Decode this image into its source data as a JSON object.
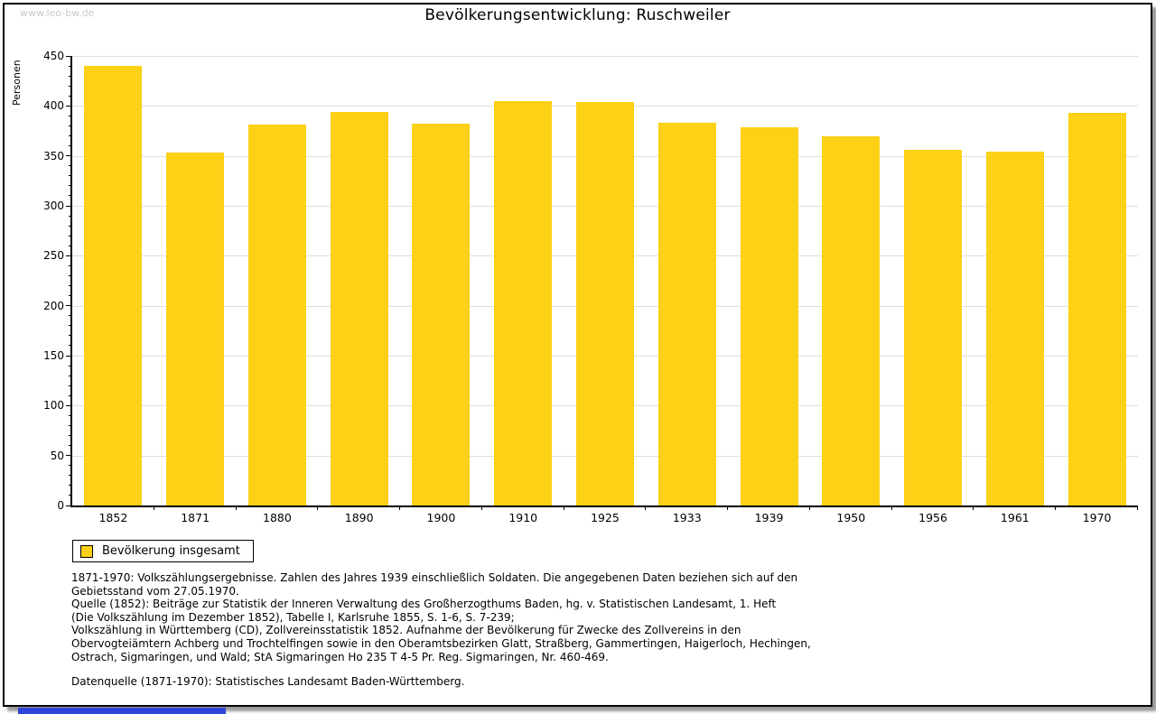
{
  "watermark": "www.leo-bw.de",
  "chart_data": {
    "type": "bar",
    "title": "Bevölkerungsentwicklung: Ruschweiler",
    "xlabel": "",
    "ylabel": "Personen",
    "ylim": [
      0,
      450
    ],
    "yticks": [
      0,
      50,
      100,
      150,
      200,
      250,
      300,
      350,
      400,
      450
    ],
    "minor_tick_step": 10,
    "grid": "horizontal",
    "legend_position": "bottom-left",
    "categories": [
      "1852",
      "1871",
      "1880",
      "1890",
      "1900",
      "1910",
      "1925",
      "1933",
      "1939",
      "1950",
      "1956",
      "1961",
      "1970"
    ],
    "values": [
      440,
      353,
      381,
      394,
      382,
      405,
      404,
      383,
      379,
      370,
      356,
      354,
      393
    ],
    "legend": [
      {
        "label": "Bevölkerung insgesamt",
        "color": "#FCD116"
      }
    ]
  },
  "notes": {
    "lines": [
      "1871-1970: Volkszählungsergebnisse. Zahlen des Jahres 1939 einschließlich Soldaten. Die angegebenen Daten beziehen sich auf den",
      "Gebietsstand vom 27.05.1970.",
      "Quelle (1852): Beiträge zur Statistik der Inneren Verwaltung des Großherzogthums Baden, hg. v. Statistischen Landesamt, 1. Heft",
      "(Die Volkszählung im Dezember 1852), Tabelle I, Karlsruhe 1855, S. 1-6, S. 7-239;",
      "Volkszählung in Württemberg (CD), Zollvereinsstatistik 1852. Aufnahme der Bevölkerung für Zwecke des Zollvereins in den",
      "Obervogteiämtern Achberg und Trochtelfingen sowie in den Oberamtsbezirken Glatt, Straßberg, Gammertingen, Haigerloch, Hechingen,",
      "Ostrach, Sigmaringen, und Wald; StA Sigmaringen Ho 235 T 4-5 Pr. Reg. Sigmaringen, Nr. 460-469."
    ],
    "datasource": "Datenquelle (1871-1970): Statistisches Landesamt Baden-Württemberg."
  },
  "colors": {
    "bar": "#FCD116",
    "gridline": "#DEDEDE",
    "watermark": "#C9C9C9",
    "axis": "#000000",
    "bottom_blue": "#2E45D9"
  }
}
